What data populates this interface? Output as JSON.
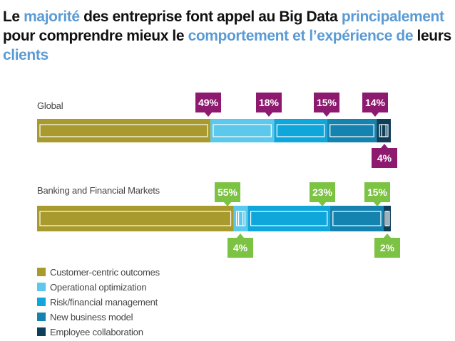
{
  "title": {
    "segments": [
      {
        "text": "Le ",
        "highlight": false
      },
      {
        "text": "majorité",
        "highlight": true
      },
      {
        "text": " des entreprise font appel au Big Data ",
        "highlight": false
      },
      {
        "text": "principalement",
        "highlight": true
      },
      {
        "text": "  pour comprendre mieux le ",
        "highlight": false
      },
      {
        "text": "comportement et l’expérience de",
        "highlight": true
      },
      {
        "text": " leurs ",
        "highlight": false
      },
      {
        "text": "clients",
        "highlight": true
      }
    ],
    "colors": {
      "text": "#111111",
      "highlight": "#5b9bd5"
    }
  },
  "chart_data": {
    "type": "bar",
    "orientation": "horizontal",
    "stacked": true,
    "categories": [
      "Global",
      "Banking and Financial Markets"
    ],
    "series": [
      {
        "name": "Customer-centric outcomes",
        "color": "#a89a2c",
        "values": [
          49,
          55
        ]
      },
      {
        "name": "Operational optimization",
        "color": "#5bc8ec",
        "values": [
          18,
          4
        ]
      },
      {
        "name": "Risk/financial management",
        "color": "#0fa6dc",
        "values": [
          15,
          23
        ]
      },
      {
        "name": "New business model",
        "color": "#1583b0",
        "values": [
          14,
          15
        ]
      },
      {
        "name": "Employee collaboration",
        "color": "#0f3f58",
        "values": [
          4,
          2
        ]
      }
    ],
    "label_colors": [
      "#8e1a70",
      "#7cc243"
    ],
    "labels": [
      {
        "above": [
          "49%",
          "18%",
          "15%",
          "14%"
        ],
        "below": [
          "4%"
        ]
      },
      {
        "above": [
          "55%",
          "23%",
          "15%"
        ],
        "below": [
          "4%",
          "2%"
        ]
      }
    ],
    "legend_position": "bottom-left",
    "grid": false
  }
}
